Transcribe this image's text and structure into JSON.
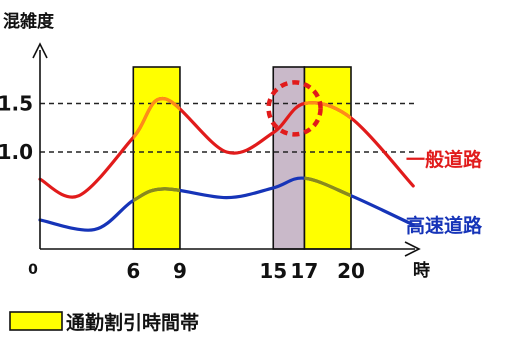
{
  "chart_data": {
    "type": "line",
    "ylabel": "混雑度",
    "xlabel": "時",
    "origin_label": "0",
    "x_ticks": [
      6,
      9,
      15,
      17,
      20
    ],
    "y_ticks": [
      1.0,
      1.5
    ],
    "y_tick_labels": [
      "1.0",
      "1.5"
    ],
    "xlim": [
      0,
      24
    ],
    "ylim": [
      0,
      2.0
    ],
    "reference_lines": [
      1.0,
      1.5
    ],
    "discount_bands": [
      {
        "from": 6,
        "to": 9
      },
      {
        "from": 17,
        "to": 20
      }
    ],
    "highlight_band": {
      "from": 15,
      "to": 17
    },
    "highlight_circle_x": 16.5,
    "series": [
      {
        "name": "一般道路",
        "color": "#e11b1b",
        "highlight_color": "#ff8c1a",
        "x": [
          0,
          2.5,
          6,
          8,
          12,
          15,
          17,
          20,
          24
        ],
        "y": [
          0.72,
          0.55,
          1.15,
          1.55,
          1.0,
          1.2,
          1.5,
          1.35,
          0.65
        ]
      },
      {
        "name": "高速道路",
        "color": "#1634b8",
        "highlight_color": "#8b8b1a",
        "x": [
          0,
          3.5,
          6,
          8,
          12,
          15,
          17,
          20,
          24
        ],
        "y": [
          0.3,
          0.2,
          0.5,
          0.62,
          0.53,
          0.63,
          0.73,
          0.55,
          0.25
        ]
      }
    ],
    "legend": {
      "label": "通勤割引時間帯",
      "color": "#ffff00"
    },
    "colors": {
      "band_fill": "#ffff00",
      "highlight_fill": "#c9b9c9",
      "circle": "#e11b1b",
      "axis": "#111111",
      "dashed": "#222222"
    }
  }
}
